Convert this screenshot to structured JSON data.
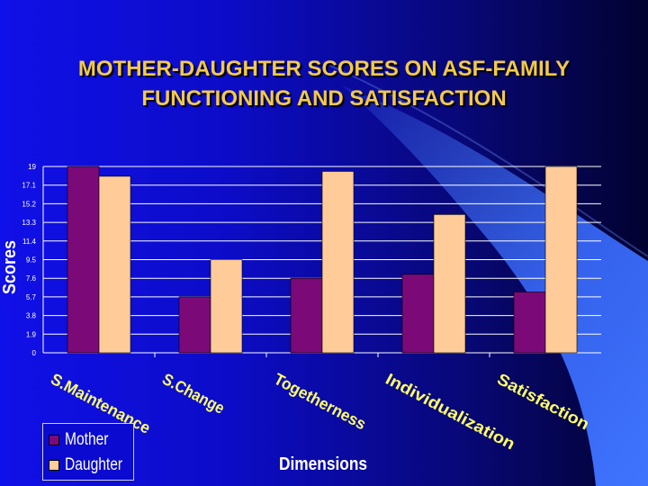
{
  "slide": {
    "title": "MOTHER-DAUGHTER SCORES ON ASF-FAMILY FUNCTIONING AND SATISFACTION"
  },
  "colors": {
    "mother": "#7b0a78",
    "daughter": "#ffcc99",
    "title": "#f2c94c"
  },
  "chart_data": {
    "type": "bar",
    "title": "",
    "xlabel": "Dimensions",
    "ylabel": "Scores",
    "categories": [
      "S.Maintenance",
      "S.Change",
      "Togetherness",
      "Individualization",
      "Satisfaction"
    ],
    "series": [
      {
        "name": "Mother",
        "values": [
          19.0,
          5.7,
          7.6,
          8.0,
          6.2
        ]
      },
      {
        "name": "Daughter",
        "values": [
          18.0,
          9.5,
          18.5,
          14.1,
          19.0
        ]
      }
    ],
    "yticks": [
      "0",
      "1.9",
      "3.8",
      "5.7",
      "7.6",
      "9.5",
      "11.4",
      "13.3",
      "15.2",
      "17.1",
      "19"
    ],
    "ylim": [
      0,
      19
    ],
    "grid": true,
    "legend": "bottom-left"
  }
}
